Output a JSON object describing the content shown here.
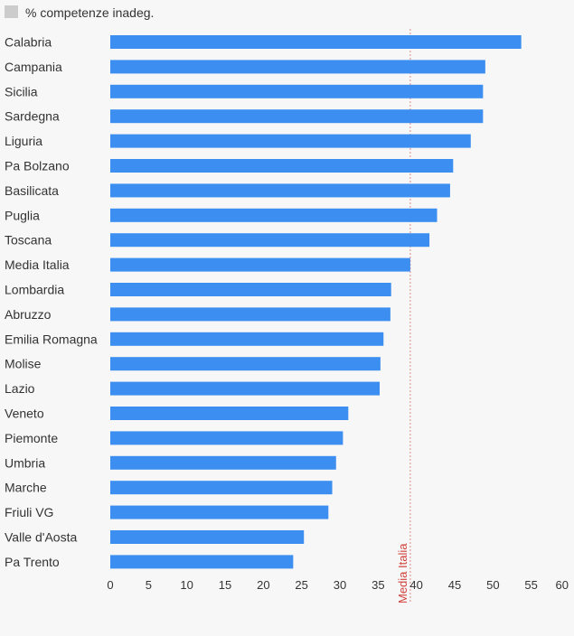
{
  "chart_data": {
    "type": "bar",
    "orientation": "horizontal",
    "legend": {
      "label": "% competenze inadeg.",
      "color": "#cccccc",
      "placement": "top-left"
    },
    "categories": [
      "Calabria",
      "Campania",
      "Sicilia",
      "Sardegna",
      "Liguria",
      "Pa Bolzano",
      "Basilicata",
      "Puglia",
      "Toscana",
      "Media Italia",
      "Lombardia",
      "Abruzzo",
      "Emilia Romagna",
      "Molise",
      "Lazio",
      "Veneto",
      "Piemonte",
      "Umbria",
      "Marche",
      "Friuli VG",
      "Valle d'Aosta",
      "Pa Trento"
    ],
    "values": [
      53.7,
      49.0,
      48.7,
      48.7,
      47.1,
      44.8,
      44.4,
      42.7,
      41.7,
      39.2,
      36.7,
      36.6,
      35.7,
      35.3,
      35.2,
      31.1,
      30.4,
      29.5,
      29.0,
      28.5,
      25.3,
      23.9
    ],
    "bar_color": "#3c8ff0",
    "x_ticks": [
      "0",
      "5",
      "10",
      "15",
      "20",
      "25",
      "30",
      "35",
      "40",
      "45",
      "50",
      "55",
      "60"
    ],
    "xlim": [
      0,
      60
    ],
    "grid": false,
    "reference_line": {
      "label": "Media Italia",
      "value": 39.2,
      "color": "#d0433b"
    }
  }
}
